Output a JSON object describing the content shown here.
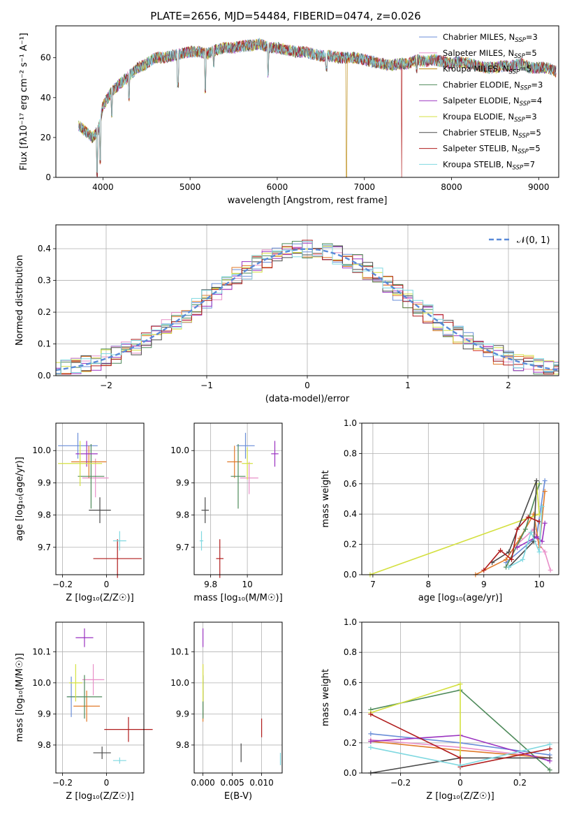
{
  "chart_data": [
    {
      "type": "line",
      "panel": "spectrum",
      "title": "PLATE=2656, MJD=54484, FIBERID=0474, z=0.026",
      "xlabel": "wavelength [Angstrom, rest frame]",
      "ylabel": "Flux [fλ10⁻¹⁷ erg cm⁻² s⁻¹ A⁻¹]",
      "xlim": [
        3460,
        9230
      ],
      "ylim": [
        0,
        76
      ],
      "xticks": [
        4000,
        5000,
        6000,
        7000,
        8000,
        9000
      ],
      "yticks": [
        0,
        20,
        40,
        60
      ],
      "grid": false,
      "legend_position": "top-right",
      "envelope": {
        "x": [
          3720,
          3800,
          3880,
          3950,
          4000,
          4100,
          4200,
          4300,
          4400,
          4500,
          4600,
          4700,
          4800,
          4900,
          5000,
          5100,
          5200,
          5300,
          5400,
          5500,
          5600,
          5700,
          5800,
          5900,
          6000,
          6100,
          6200,
          6300,
          6400,
          6500,
          6600,
          6700,
          6800,
          6900,
          7000,
          7100,
          7200,
          7300,
          7400,
          7500,
          7600,
          7700,
          7800,
          7900,
          8000,
          8100,
          8200,
          8300,
          8400,
          8500,
          8600,
          8700,
          8800,
          8900,
          9000,
          9100,
          9200
        ],
        "y": [
          26,
          23,
          20,
          24,
          36,
          43,
          47,
          51,
          55,
          57,
          60,
          60,
          61,
          62,
          63,
          63,
          62,
          64,
          65,
          65,
          66,
          66,
          67,
          65,
          65,
          64,
          63,
          63,
          62,
          61,
          61,
          60,
          60,
          60,
          59,
          58,
          57,
          56,
          57,
          57,
          59,
          58,
          59,
          58,
          57,
          58,
          57,
          56,
          55,
          55,
          56,
          56,
          57,
          55,
          55,
          55,
          53
        ]
      },
      "absorption_dips": [
        {
          "x": 3934,
          "y": 0
        },
        {
          "x": 3969,
          "y": 6
        },
        {
          "x": 4102,
          "y": 30
        },
        {
          "x": 4300,
          "y": 38
        },
        {
          "x": 4861,
          "y": 45
        },
        {
          "x": 5175,
          "y": 42
        },
        {
          "x": 5270,
          "y": 55
        },
        {
          "x": 5894,
          "y": 50
        },
        {
          "x": 6563,
          "y": 53
        },
        {
          "x": 7600,
          "y": 52
        }
      ],
      "model_dropouts": [
        {
          "series": "Kroupa MILES",
          "x": 6795
        },
        {
          "series": "Salpeter STELIB",
          "x": 7430
        }
      ],
      "series": [
        {
          "name": "Chabrier MILES, N",
          "sub": "SSP",
          "suffix": "=3",
          "color": "#6a8ed8"
        },
        {
          "name": "Salpeter MILES, N",
          "sub": "SSP",
          "suffix": "=5",
          "color": "#e88fc8"
        },
        {
          "name": "Kroupa MILES, N",
          "sub": "SSP",
          "suffix": "=5",
          "color": "#b8860b"
        },
        {
          "name": "Chabrier ELODIE, N",
          "sub": "SSP",
          "suffix": "=3",
          "color": "#4e8a5a"
        },
        {
          "name": "Salpeter ELODIE, N",
          "sub": "SSP",
          "suffix": "=4",
          "color": "#9a32c0"
        },
        {
          "name": "Kroupa ELODIE, N",
          "sub": "SSP",
          "suffix": "=3",
          "color": "#d4e040"
        },
        {
          "name": "Chabrier STELIB, N",
          "sub": "SSP",
          "suffix": "=5",
          "color": "#4a4a4a"
        },
        {
          "name": "Salpeter STELIB, N",
          "sub": "SSP",
          "suffix": "=5",
          "color": "#b01c1c"
        },
        {
          "name": "Kroupa STELIB, N",
          "sub": "SSP",
          "suffix": "=7",
          "color": "#7fd8e0"
        }
      ]
    },
    {
      "type": "line",
      "panel": "residuals",
      "xlabel": "(data-model)/error",
      "ylabel": "Normed distribution",
      "xlim": [
        -2.5,
        2.5
      ],
      "ylim": [
        0,
        0.475
      ],
      "xticks": [
        -2,
        -1,
        0,
        1,
        2
      ],
      "yticks": [
        0.0,
        0.1,
        0.2,
        0.3,
        0.4
      ],
      "grid": true,
      "legend_position": "top-right",
      "gaussian": {
        "name": "𝒩(0, 1)",
        "color": "#5a8ad8"
      },
      "bin_width": 0.1,
      "series_colors": [
        "#6a8ed8",
        "#e88fc8",
        "#e07a2a",
        "#4e8a5a",
        "#9a32c0",
        "#d4e040",
        "#4a4a4a",
        "#b01c1c",
        "#7fd8e0"
      ]
    },
    {
      "type": "scatter",
      "panel": "age-vs-metallicity",
      "xlabel": "Z [log₁₀(Z/Z☉)]",
      "ylabel": "age  [log₁₀(age/yr)]",
      "xlim": [
        -0.23,
        0.17
      ],
      "ylim": [
        9.615,
        10.085
      ],
      "xticks": [
        -0.2,
        0.0
      ],
      "yticks": [
        9.7,
        9.8,
        9.9,
        10.0
      ],
      "grid": true,
      "points": [
        {
          "x": -0.13,
          "y": 10.015,
          "xerr": 0.09,
          "yerr": 0.04,
          "color": "#6a8ed8"
        },
        {
          "x": -0.05,
          "y": 9.915,
          "xerr": 0.06,
          "yerr": 0.06,
          "color": "#e88fc8"
        },
        {
          "x": -0.08,
          "y": 9.965,
          "xerr": 0.08,
          "yerr": 0.05,
          "color": "#e07a2a"
        },
        {
          "x": -0.07,
          "y": 9.92,
          "xerr": 0.06,
          "yerr": 0.1,
          "color": "#4e8a5a"
        },
        {
          "x": -0.09,
          "y": 9.99,
          "xerr": 0.05,
          "yerr": 0.04,
          "color": "#9a32c0"
        },
        {
          "x": -0.12,
          "y": 9.96,
          "xerr": 0.1,
          "yerr": 0.07,
          "color": "#d4e040"
        },
        {
          "x": -0.03,
          "y": 9.815,
          "xerr": 0.05,
          "yerr": 0.04,
          "color": "#4a4a4a"
        },
        {
          "x": 0.05,
          "y": 9.665,
          "xerr": 0.11,
          "yerr": 0.06,
          "color": "#b01c1c"
        },
        {
          "x": 0.06,
          "y": 9.72,
          "xerr": 0.03,
          "yerr": 0.03,
          "color": "#7fd8e0"
        }
      ]
    },
    {
      "type": "scatter",
      "panel": "age-vs-mass",
      "xlabel": "mass [log₁₀(M/M☉)]",
      "ylabel": "",
      "xlim": [
        9.71,
        10.19
      ],
      "ylim": [
        9.615,
        10.085
      ],
      "xticks": [
        9.8,
        10.0
      ],
      "yticks": [
        9.7,
        9.8,
        9.9,
        10.0
      ],
      "grid": true,
      "points": [
        {
          "x": 9.99,
          "y": 10.015,
          "xerr": 0.05,
          "yerr": 0.04,
          "color": "#6a8ed8"
        },
        {
          "x": 10.01,
          "y": 9.915,
          "xerr": 0.05,
          "yerr": 0.05,
          "color": "#e88fc8"
        },
        {
          "x": 9.93,
          "y": 9.965,
          "xerr": 0.04,
          "yerr": 0.05,
          "color": "#e07a2a"
        },
        {
          "x": 9.95,
          "y": 9.92,
          "xerr": 0.04,
          "yerr": 0.1,
          "color": "#4e8a5a"
        },
        {
          "x": 10.15,
          "y": 9.99,
          "xerr": 0.02,
          "yerr": 0.04,
          "color": "#9a32c0"
        },
        {
          "x": 10.0,
          "y": 9.96,
          "xerr": 0.03,
          "yerr": 0.05,
          "color": "#d4e040"
        },
        {
          "x": 9.77,
          "y": 9.815,
          "xerr": 0.02,
          "yerr": 0.04,
          "color": "#4a4a4a"
        },
        {
          "x": 9.85,
          "y": 9.665,
          "xerr": 0.02,
          "yerr": 0.06,
          "color": "#b01c1c"
        },
        {
          "x": 9.75,
          "y": 9.72,
          "xerr": 0.01,
          "yerr": 0.03,
          "color": "#7fd8e0"
        }
      ]
    },
    {
      "type": "line",
      "panel": "massweight-vs-age",
      "xlabel": "age  [log₁₀(age/yr)]",
      "ylabel": "mass weight",
      "xlim": [
        6.8,
        10.35
      ],
      "ylim": [
        0,
        1.0
      ],
      "xticks": [
        7,
        8,
        9,
        10
      ],
      "yticks": [
        0.0,
        0.2,
        0.4,
        0.6,
        0.8,
        1.0
      ],
      "grid": true,
      "series": [
        {
          "color": "#6a8ed8",
          "x": [
            9.4,
            9.95,
            10.1
          ],
          "y": [
            0.08,
            0.25,
            0.62
          ]
        },
        {
          "color": "#e88fc8",
          "x": [
            9.6,
            9.9,
            10.0,
            10.1,
            10.2
          ],
          "y": [
            0.2,
            0.3,
            0.2,
            0.15,
            0.03
          ]
        },
        {
          "color": "#e07a2a",
          "x": [
            8.85,
            9.4,
            9.65,
            9.9,
            10.0,
            10.1
          ],
          "y": [
            0.0,
            0.1,
            0.24,
            0.4,
            0.18,
            0.55
          ]
        },
        {
          "color": "#4e8a5a",
          "x": [
            9.4,
            9.75,
            10.0
          ],
          "y": [
            0.05,
            0.3,
            0.6
          ]
        },
        {
          "color": "#9a32c0",
          "x": [
            9.6,
            9.95,
            10.05,
            10.1
          ],
          "y": [
            0.18,
            0.25,
            0.22,
            0.34
          ]
        },
        {
          "color": "#d4e040",
          "x": [
            6.95,
            10.0,
            9.95
          ],
          "y": [
            0.0,
            0.4,
            0.6
          ]
        },
        {
          "color": "#4a4a4a",
          "x": [
            9.15,
            9.45,
            9.95,
            9.9,
            9.45
          ],
          "y": [
            0.08,
            0.15,
            0.62,
            0.22,
            0.05
          ]
        },
        {
          "color": "#b01c1c",
          "x": [
            9.0,
            9.3,
            9.5,
            9.6,
            9.8,
            10.0
          ],
          "y": [
            0.03,
            0.16,
            0.1,
            0.3,
            0.38,
            0.35
          ]
        },
        {
          "color": "#7fd8e0",
          "x": [
            9.45,
            9.7,
            9.85,
            10.0,
            10.05
          ],
          "y": [
            0.05,
            0.1,
            0.28,
            0.15,
            0.45
          ]
        }
      ]
    },
    {
      "type": "scatter",
      "panel": "mass-vs-metallicity",
      "xlabel": "Z [log₁₀(Z/Z☉)]",
      "ylabel": "mass [log₁₀(M/M☉)]",
      "xlim": [
        -0.23,
        0.17
      ],
      "ylim": [
        9.71,
        10.195
      ],
      "xticks": [
        -0.2,
        0.0
      ],
      "yticks": [
        9.8,
        9.9,
        10.0,
        10.1
      ],
      "grid": true,
      "points": [
        {
          "x": -0.16,
          "y": 9.955,
          "xerr": 0.02,
          "yerr": 0.065,
          "color": "#6a8ed8"
        },
        {
          "x": -0.06,
          "y": 10.01,
          "xerr": 0.05,
          "yerr": 0.05,
          "color": "#e88fc8"
        },
        {
          "x": -0.09,
          "y": 9.925,
          "xerr": 0.06,
          "yerr": 0.05,
          "color": "#e07a2a"
        },
        {
          "x": -0.1,
          "y": 9.955,
          "xerr": 0.08,
          "yerr": 0.07,
          "color": "#4e8a5a"
        },
        {
          "x": -0.1,
          "y": 10.145,
          "xerr": 0.04,
          "yerr": 0.03,
          "color": "#9a32c0"
        },
        {
          "x": -0.14,
          "y": 10.0,
          "xerr": 0.03,
          "yerr": 0.06,
          "color": "#d4e040"
        },
        {
          "x": -0.02,
          "y": 9.775,
          "xerr": 0.04,
          "yerr": 0.02,
          "color": "#4a4a4a"
        },
        {
          "x": 0.1,
          "y": 9.85,
          "xerr": 0.11,
          "yerr": 0.04,
          "color": "#b01c1c"
        },
        {
          "x": 0.06,
          "y": 9.75,
          "xerr": 0.03,
          "yerr": 0.01,
          "color": "#7fd8e0"
        }
      ]
    },
    {
      "type": "scatter",
      "panel": "mass-vs-ebv",
      "xlabel": "E(B-V)",
      "ylabel": "",
      "xlim": [
        -0.0015,
        0.0135
      ],
      "ylim": [
        9.71,
        10.195
      ],
      "xticks": [
        0.0,
        0.005,
        0.01
      ],
      "xticklabels": [
        "0.000",
        "0.005",
        "0.010"
      ],
      "yticks": [
        9.8,
        9.9,
        10.0,
        10.1
      ],
      "grid": true,
      "points": [
        {
          "x": 0.0,
          "y": 9.955,
          "xerr": 0.0,
          "yerr": 0.065,
          "color": "#6a8ed8"
        },
        {
          "x": 0.0,
          "y": 10.01,
          "xerr": 0.0,
          "yerr": 0.05,
          "color": "#e88fc8"
        },
        {
          "x": 0.0,
          "y": 9.925,
          "xerr": 0.0,
          "yerr": 0.05,
          "color": "#e07a2a"
        },
        {
          "x": 0.0,
          "y": 9.955,
          "xerr": 0.0,
          "yerr": 0.07,
          "color": "#4e8a5a"
        },
        {
          "x": 0.0,
          "y": 10.145,
          "xerr": 0.0,
          "yerr": 0.03,
          "color": "#9a32c0"
        },
        {
          "x": 0.0,
          "y": 10.0,
          "xerr": 0.0,
          "yerr": 0.06,
          "color": "#d4e040"
        },
        {
          "x": 0.0065,
          "y": 9.775,
          "xerr": 0.0,
          "yerr": 0.03,
          "color": "#4a4a4a"
        },
        {
          "x": 0.01,
          "y": 9.855,
          "xerr": 0.0,
          "yerr": 0.03,
          "color": "#b01c1c"
        },
        {
          "x": 0.0132,
          "y": 9.755,
          "xerr": 0.0,
          "yerr": 0.02,
          "color": "#7fd8e0"
        }
      ]
    },
    {
      "type": "line",
      "panel": "massweight-vs-metallicity",
      "xlabel": "Z [log₁₀(Z/Z☉)]",
      "ylabel": "mass weight",
      "xlim": [
        -0.33,
        0.33
      ],
      "ylim": [
        0,
        1.0
      ],
      "xticks": [
        -0.2,
        0.0,
        0.2
      ],
      "yticks": [
        0.0,
        0.2,
        0.4,
        0.6,
        0.8,
        1.0
      ],
      "grid": true,
      "series": [
        {
          "color": "#6a8ed8",
          "x": [
            -0.3,
            0.0,
            0.3
          ],
          "y": [
            0.26,
            0.2,
            0.12
          ]
        },
        {
          "color": "#e88fc8",
          "x": [
            -0.3,
            0.0,
            0.3
          ],
          "y": [
            0.22,
            0.17,
            0.1
          ]
        },
        {
          "color": "#e07a2a",
          "x": [
            -0.3,
            0.0,
            0.3
          ],
          "y": [
            0.21,
            0.15,
            0.1
          ]
        },
        {
          "color": "#4e8a5a",
          "x": [
            -0.3,
            0.0,
            0.3
          ],
          "y": [
            0.42,
            0.55,
            0.02
          ]
        },
        {
          "color": "#9a32c0",
          "x": [
            -0.3,
            0.0,
            0.3
          ],
          "y": [
            0.21,
            0.25,
            0.08
          ]
        },
        {
          "color": "#d4e040",
          "x": [
            -0.3,
            0.0,
            0.0
          ],
          "y": [
            0.4,
            0.59,
            0.1
          ]
        },
        {
          "color": "#4a4a4a",
          "x": [
            -0.3,
            0.0,
            0.3
          ],
          "y": [
            0.0,
            0.1,
            0.1
          ]
        },
        {
          "color": "#b01c1c",
          "x": [
            -0.3,
            0.0,
            0.0,
            0.3
          ],
          "y": [
            0.39,
            0.1,
            0.04,
            0.16
          ]
        },
        {
          "color": "#7fd8e0",
          "x": [
            -0.3,
            0.0,
            0.3
          ],
          "y": [
            0.17,
            0.05,
            0.19
          ]
        }
      ]
    }
  ]
}
